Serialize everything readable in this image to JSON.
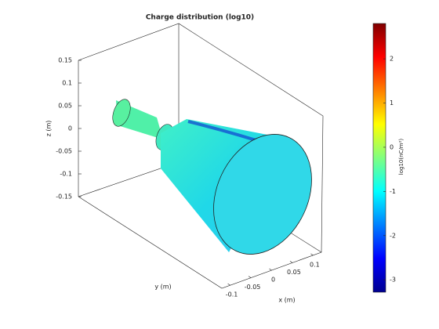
{
  "chart_data": {
    "type": "surface",
    "title": "Charge distribution (log10)",
    "xlabel": "x (m)",
    "ylabel": "y (m)",
    "zlabel": "z (m)",
    "xlim": [
      -0.12,
      0.12
    ],
    "xticks": [
      -0.1,
      -0.05,
      0,
      0.05,
      0.1
    ],
    "zlim": [
      -0.15,
      0.15
    ],
    "zticks": [
      -0.15,
      -0.1,
      -0.05,
      0,
      0.05,
      0.1,
      0.15
    ],
    "colorbar": {
      "label": "log10(nC/m²)",
      "colormap": "jet",
      "clim": [
        -3.28,
        2.8
      ],
      "ticks": [
        -3,
        -2,
        -1,
        0,
        1,
        2
      ]
    }
  }
}
